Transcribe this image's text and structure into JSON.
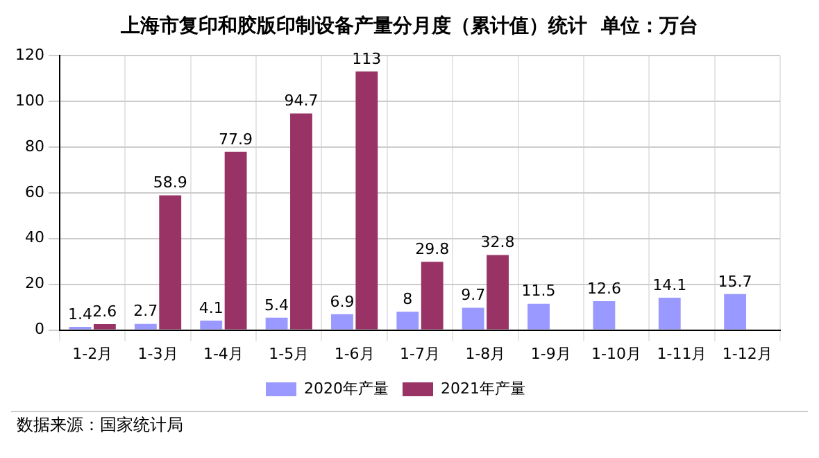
{
  "chart_data": {
    "type": "bar",
    "title": "上海市复印和胶版印制设备产量分月度（累计值）统计  单位：万台",
    "categories": [
      "1-2月",
      "1-3月",
      "1-4月",
      "1-5月",
      "1-6月",
      "1-7月",
      "1-8月",
      "1-9月",
      "1-10月",
      "1-11月",
      "1-12月"
    ],
    "series": [
      {
        "name": "2020年产量",
        "color": "#9999ff",
        "values": [
          1.4,
          2.7,
          4.1,
          5.4,
          6.9,
          8,
          9.7,
          11.5,
          12.6,
          14.1,
          15.7
        ]
      },
      {
        "name": "2021年产量",
        "color": "#993366",
        "values": [
          2.6,
          58.9,
          77.9,
          94.7,
          113,
          29.8,
          32.8,
          null,
          null,
          null,
          null
        ]
      }
    ],
    "ylim": [
      0,
      120
    ],
    "yticks": [
      0,
      20,
      40,
      60,
      80,
      100,
      120
    ],
    "grid": true,
    "legend": "bottom",
    "data_labels": true,
    "annotations": [
      "数据来源：国家统计局"
    ]
  }
}
